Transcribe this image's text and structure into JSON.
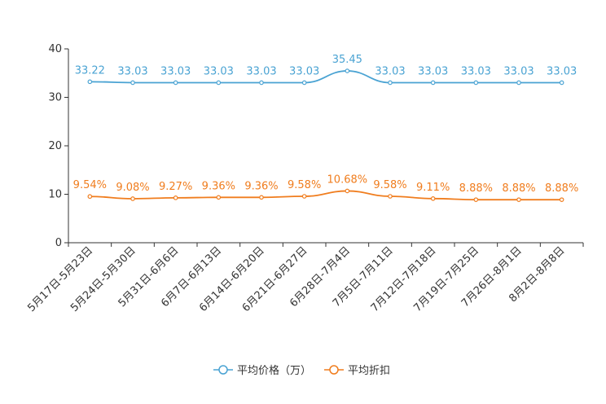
{
  "chart_data": {
    "type": "line",
    "title": "",
    "xlabel": "",
    "ylabel": "",
    "ylim": [
      0,
      40
    ],
    "yticks": [
      0,
      10,
      20,
      30,
      40
    ],
    "grid": false,
    "legend_position": "bottom-center",
    "categories": [
      "5月17日-5月23日",
      "5月24日-5月30日",
      "5月31日-6月6日",
      "6月7日-6月13日",
      "6月14日-6月20日",
      "6月21日-6月27日",
      "6月28日-7月4日",
      "7月5日-7月11日",
      "7月12日-7月18日",
      "7月19日-7月25日",
      "7月26日-8月1日",
      "8月2日-8月8日"
    ],
    "series": [
      {
        "name": "平均价格（万）",
        "color": "#4aa3d3",
        "values": [
          33.22,
          33.03,
          33.03,
          33.03,
          33.03,
          33.03,
          35.45,
          33.03,
          33.03,
          33.03,
          33.03,
          33.03
        ],
        "labels": [
          "33.22",
          "33.03",
          "33.03",
          "33.03",
          "33.03",
          "33.03",
          "35.45",
          "33.03",
          "33.03",
          "33.03",
          "33.03",
          "33.03"
        ]
      },
      {
        "name": "平均折扣",
        "color": "#f07d1e",
        "values": [
          9.54,
          9.08,
          9.27,
          9.36,
          9.36,
          9.58,
          10.68,
          9.58,
          9.11,
          8.88,
          8.88,
          8.88
        ],
        "labels": [
          "9.54%",
          "9.08%",
          "9.27%",
          "9.36%",
          "9.36%",
          "9.58%",
          "10.68%",
          "9.58%",
          "9.11%",
          "8.88%",
          "8.88%",
          "8.88%"
        ]
      }
    ]
  }
}
